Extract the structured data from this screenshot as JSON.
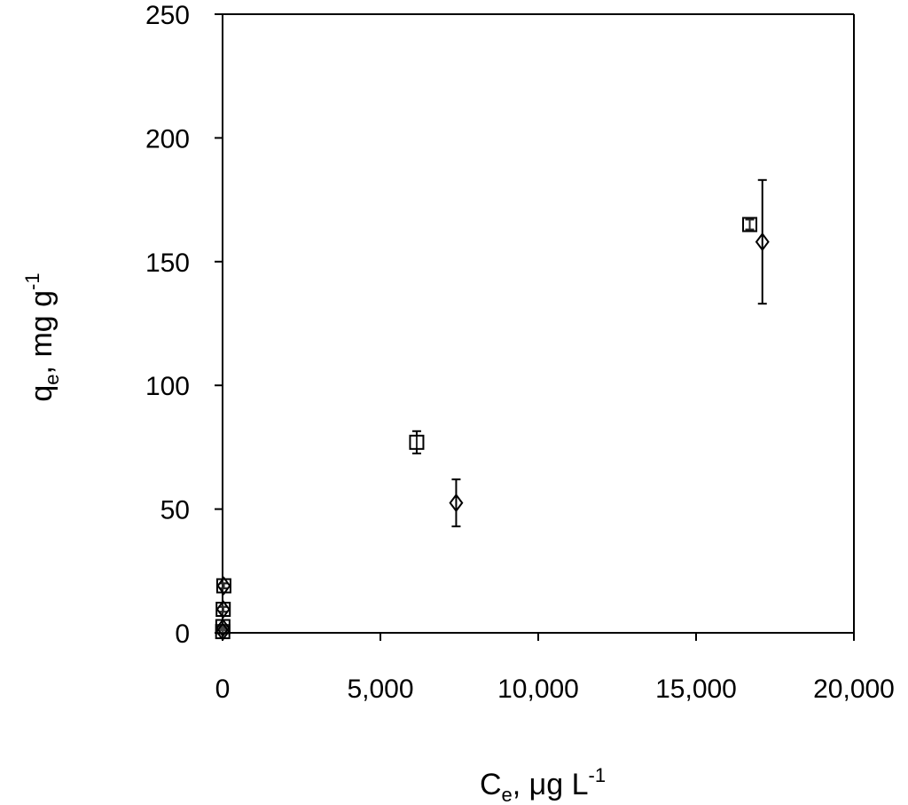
{
  "chart_data": {
    "type": "scatter",
    "xlabel": {
      "main": "C",
      "sub": "e",
      "rest": ", μg L",
      "sup": "-1"
    },
    "ylabel": {
      "main": "q",
      "sub": "e",
      "rest": ", mg g",
      "sup": "-1"
    },
    "xlim": [
      0,
      20000
    ],
    "ylim": [
      0,
      250
    ],
    "x_ticks": [
      0,
      5000,
      10000,
      15000,
      20000
    ],
    "x_tick_labels": [
      "0",
      "5,000",
      "10,000",
      "15,000",
      "20,000"
    ],
    "y_ticks": [
      0,
      50,
      100,
      150,
      200,
      250
    ],
    "y_tick_labels": [
      "0",
      "50",
      "100",
      "150",
      "200",
      "250"
    ],
    "grid": false,
    "legend": "none",
    "series": [
      {
        "marker": "square",
        "points": [
          {
            "x": 5,
            "y": 0.5,
            "err": 0.5
          },
          {
            "x": 10,
            "y": 2.5,
            "err": 0.5
          },
          {
            "x": 20,
            "y": 9.5,
            "err": 1
          },
          {
            "x": 40,
            "y": 19,
            "err": 1
          },
          {
            "x": 6150,
            "y": 77,
            "err": 4.5
          },
          {
            "x": 16700,
            "y": 165,
            "err": 2
          }
        ]
      },
      {
        "marker": "diamond",
        "points": [
          {
            "x": 5,
            "y": 0.5,
            "err": 0.5
          },
          {
            "x": 10,
            "y": 2,
            "err": 0.5
          },
          {
            "x": 20,
            "y": 9.5,
            "err": 1
          },
          {
            "x": 40,
            "y": 19,
            "err": 1
          },
          {
            "x": 7400,
            "y": 52.5,
            "err": 9.5
          },
          {
            "x": 17100,
            "y": 158,
            "err": 25
          }
        ]
      }
    ]
  }
}
